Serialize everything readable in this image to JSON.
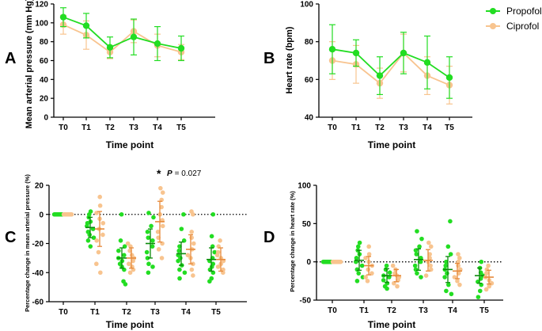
{
  "colors": {
    "propofol": "#22dd22",
    "ciprofol": "#f8c48f",
    "ciprofol_dark": "#e6893a",
    "axis": "#000000"
  },
  "chart_data": [
    {
      "panel": "A",
      "type": "line",
      "categories": [
        "T0",
        "T1",
        "T2",
        "T3",
        "T4",
        "T5"
      ],
      "xlabel": "Time point",
      "ylabel": "Mean arterial pressure (mm Hg)",
      "ylim": [
        0,
        120
      ],
      "yticks": [
        "0",
        "20",
        "40",
        "60",
        "80",
        "100",
        "120"
      ],
      "series": [
        {
          "name": "Propofol",
          "values": [
            106,
            97,
            74,
            85,
            78,
            73
          ],
          "err": [
            10,
            13,
            11,
            19,
            18,
            13
          ]
        },
        {
          "name": "Ciprofol",
          "values": [
            98,
            87,
            69,
            91,
            76,
            69
          ],
          "err": [
            10,
            15,
            7,
            12,
            12,
            8
          ]
        }
      ]
    },
    {
      "panel": "B",
      "type": "line",
      "categories": [
        "T0",
        "T1",
        "T2",
        "T3",
        "T4",
        "T5"
      ],
      "xlabel": "Time point",
      "ylabel": "Heart rate (bpm)",
      "ylim": [
        40,
        100
      ],
      "yticks": [
        "40",
        "60",
        "80",
        "100"
      ],
      "series": [
        {
          "name": "Propofol",
          "values": [
            76,
            74,
            62,
            74,
            69,
            61
          ],
          "err": [
            13,
            7,
            10,
            11,
            14,
            11
          ]
        },
        {
          "name": "Ciprofol",
          "values": [
            70,
            68,
            58,
            74,
            62,
            57
          ],
          "err": [
            10,
            10,
            8,
            10,
            10,
            10
          ]
        }
      ]
    },
    {
      "panel": "C",
      "type": "scatter",
      "categories": [
        "T0",
        "T1",
        "T2",
        "T3",
        "T4",
        "T5"
      ],
      "xlabel": "Time point",
      "ylabel": "Percentage change in mean arterial pressure (%)",
      "ylim": [
        -60,
        20
      ],
      "yticks": [
        "-60",
        "-40",
        "-20",
        "0",
        "20"
      ],
      "reference_line": 0,
      "annotation": {
        "star": "*",
        "p_label": "P",
        "p_value": "= 0.027",
        "category": "T3"
      },
      "series": [
        {
          "name": "Propofol",
          "means": [
            0,
            -9,
            -30,
            -20,
            -27,
            -31
          ],
          "sd": [
            0,
            7,
            7,
            10,
            8,
            8
          ],
          "points": [
            [
              0,
              0,
              0,
              0,
              0,
              0,
              0,
              0,
              0,
              0,
              0,
              0
            ],
            [
              2,
              0,
              -2,
              -5,
              -6,
              -8,
              -10,
              -12,
              -14,
              -16,
              -18,
              -22
            ],
            [
              0,
              -18,
              -22,
              -25,
              -28,
              -30,
              -32,
              -34,
              -36,
              -38,
              -46,
              -48
            ],
            [
              1,
              -2,
              -8,
              -12,
              -16,
              -18,
              -22,
              -26,
              -30,
              -34,
              -36,
              -40
            ],
            [
              0,
              -10,
              -18,
              -22,
              -25,
              -28,
              -30,
              -32,
              -35,
              -38,
              -40,
              -44
            ],
            [
              0,
              -15,
              -22,
              -26,
              -30,
              -32,
              -34,
              -36,
              -38,
              -40,
              -44,
              -46
            ]
          ]
        },
        {
          "name": "Ciprofol",
          "means": [
            0,
            -10,
            -30,
            -5,
            -24,
            -31
          ],
          "sd": [
            0,
            12,
            7,
            14,
            10,
            8
          ],
          "points": [
            [
              0,
              0,
              0,
              0,
              0,
              0,
              0,
              0,
              0,
              0,
              0,
              0
            ],
            [
              12,
              6,
              1,
              -3,
              -6,
              -10,
              -14,
              -18,
              -26,
              -34,
              -40
            ],
            [
              -20,
              -22,
              -25,
              -28,
              -30,
              -32,
              -34,
              -36,
              -38,
              -40
            ],
            [
              18,
              15,
              10,
              5,
              0,
              -4,
              -8,
              -12,
              -16,
              -20,
              -24,
              -30
            ],
            [
              2,
              0,
              -12,
              -16,
              -20,
              -24,
              -28,
              -30,
              -34,
              -38,
              -42
            ],
            [
              -18,
              -22,
              -26,
              -28,
              -30,
              -32,
              -34,
              -36,
              -38,
              -40
            ]
          ]
        }
      ]
    },
    {
      "panel": "D",
      "type": "scatter",
      "categories": [
        "T0",
        "T1",
        "T2",
        "T3",
        "T4",
        "T5"
      ],
      "xlabel": "Time point",
      "ylabel": "Percentage change in heart rate (%)",
      "ylim": [
        -50,
        100
      ],
      "yticks": [
        "-50",
        "0",
        "50",
        "100"
      ],
      "reference_line": 0,
      "series": [
        {
          "name": "Propofol",
          "means": [
            0,
            2,
            -18,
            3,
            -10,
            -18
          ],
          "sd": [
            0,
            13,
            9,
            14,
            17,
            10
          ],
          "points": [
            [
              0,
              0,
              0,
              0,
              0,
              0,
              0,
              0,
              0,
              0,
              0,
              0
            ],
            [
              25,
              20,
              15,
              10,
              5,
              0,
              -5,
              -10,
              -15,
              -20,
              -25
            ],
            [
              -5,
              -10,
              -14,
              -18,
              -20,
              -24,
              -28,
              -32,
              -35
            ],
            [
              40,
              30,
              20,
              15,
              10,
              5,
              0,
              -5,
              -10,
              -15,
              -20
            ],
            [
              53,
              20,
              10,
              0,
              -5,
              -10,
              -15,
              -20,
              -30,
              -38,
              -42
            ],
            [
              0,
              -8,
              -14,
              -18,
              -22,
              -26,
              -30,
              -38,
              -46
            ]
          ]
        },
        {
          "name": "Ciprofol",
          "means": [
            0,
            -5,
            -18,
            2,
            -12,
            -20
          ],
          "sd": [
            0,
            12,
            8,
            14,
            10,
            9
          ],
          "points": [
            [
              0,
              0,
              0,
              0,
              0,
              0,
              0,
              0,
              0,
              0,
              0,
              0
            ],
            [
              20,
              10,
              5,
              0,
              -5,
              -10,
              -15,
              -20,
              -25
            ],
            [
              -5,
              -10,
              -15,
              -18,
              -20,
              -24,
              -28,
              -32
            ],
            [
              25,
              20,
              10,
              5,
              0,
              -5,
              -10,
              -18
            ],
            [
              10,
              5,
              0,
              -5,
              -10,
              -15,
              -20,
              -25,
              -30
            ],
            [
              -5,
              -10,
              -15,
              -20,
              -24,
              -28,
              -32,
              -36
            ]
          ]
        }
      ]
    }
  ],
  "legend": {
    "items": [
      {
        "label": "Propofol",
        "color": "#22dd22"
      },
      {
        "label": "Ciprofol",
        "color": "#f8c48f"
      }
    ]
  }
}
